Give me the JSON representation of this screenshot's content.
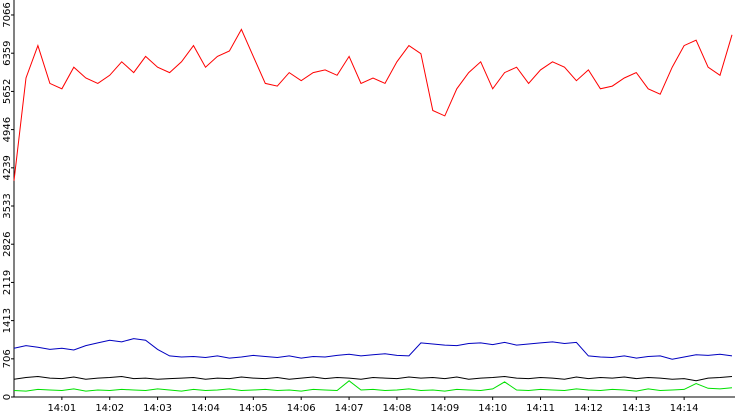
{
  "chart_data": {
    "type": "line",
    "categories": [
      null,
      null,
      null,
      null,
      "14:01",
      null,
      null,
      null,
      "14:02",
      null,
      null,
      null,
      "14:03",
      null,
      null,
      null,
      "14:04",
      null,
      null,
      null,
      "14:05",
      null,
      null,
      null,
      "14:06",
      null,
      null,
      null,
      "14:07",
      null,
      null,
      null,
      "14:08",
      null,
      null,
      null,
      "14:09",
      null,
      null,
      null,
      "14:10",
      null,
      null,
      null,
      "14:11",
      null,
      null,
      null,
      "14:12",
      null,
      null,
      null,
      "14:13",
      null,
      null,
      null,
      "14:14",
      null,
      null,
      null,
      null
    ],
    "series": [
      {
        "color": "#ff0000",
        "values": [
          4000,
          5900,
          6500,
          5800,
          5700,
          6100,
          5900,
          5800,
          5950,
          6200,
          6000,
          6300,
          6100,
          6000,
          6200,
          6500,
          6100,
          6300,
          6400,
          6800,
          6300,
          5800,
          5750,
          6000,
          5850,
          6000,
          6050,
          5950,
          6300,
          5800,
          5900,
          5800,
          6200,
          6500,
          6350,
          5300,
          5200,
          5700,
          6000,
          6200,
          5700,
          6000,
          6100,
          5800,
          6050,
          6200,
          6100,
          5850,
          6050,
          5700,
          5750,
          5900,
          6000,
          5700,
          5600,
          6100,
          6500,
          6600,
          6100,
          5950,
          6700
        ]
      },
      {
        "color": "#0000c0",
        "values": [
          900,
          950,
          920,
          880,
          900,
          870,
          950,
          1000,
          1050,
          1020,
          1080,
          1050,
          880,
          760,
          740,
          750,
          730,
          760,
          720,
          740,
          770,
          750,
          730,
          760,
          720,
          750,
          740,
          770,
          790,
          760,
          780,
          800,
          770,
          760,
          1000,
          980,
          960,
          950,
          990,
          1000,
          970,
          1010,
          960,
          980,
          1000,
          1020,
          990,
          1010,
          760,
          740,
          730,
          760,
          720,
          750,
          760,
          700,
          740,
          780,
          770,
          790,
          760
        ]
      },
      {
        "color": "#000000",
        "values": [
          330,
          360,
          380,
          350,
          340,
          370,
          330,
          350,
          360,
          380,
          340,
          350,
          330,
          340,
          350,
          360,
          330,
          350,
          340,
          370,
          350,
          340,
          360,
          330,
          350,
          370,
          340,
          360,
          350,
          330,
          360,
          350,
          340,
          370,
          350,
          360,
          340,
          370,
          330,
          350,
          360,
          380,
          350,
          340,
          360,
          350,
          330,
          370,
          340,
          360,
          350,
          370,
          340,
          360,
          350,
          330,
          340,
          300,
          350,
          360,
          380
        ]
      },
      {
        "color": "#00e000",
        "values": [
          120,
          110,
          140,
          130,
          120,
          150,
          110,
          130,
          120,
          140,
          130,
          120,
          150,
          130,
          110,
          140,
          120,
          130,
          150,
          120,
          130,
          140,
          120,
          130,
          110,
          140,
          130,
          120,
          300,
          130,
          140,
          120,
          130,
          150,
          120,
          130,
          110,
          140,
          130,
          120,
          150,
          280,
          130,
          120,
          140,
          130,
          120,
          150,
          130,
          120,
          140,
          130,
          110,
          150,
          120,
          130,
          140,
          250,
          160,
          150,
          170
        ]
      }
    ],
    "ylim": [
      0,
      7343
    ],
    "yticks": [
      0,
      706,
      1413,
      2119,
      2826,
      3533,
      4239,
      4946,
      5652,
      6359,
      7066
    ],
    "grid": false
  }
}
